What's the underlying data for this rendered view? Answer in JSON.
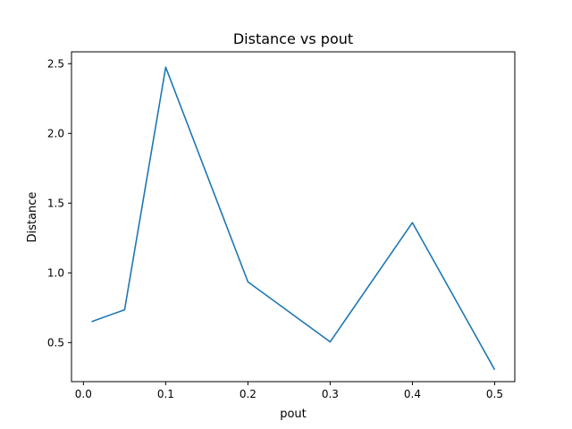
{
  "chart_data": {
    "type": "line",
    "title": "Distance vs pout",
    "xlabel": "pout",
    "ylabel": "Distance",
    "xlim": [
      -0.0145,
      0.5245
    ],
    "ylim": [
      0.22,
      2.585
    ],
    "xticks": [
      0.0,
      0.1,
      0.2,
      0.3,
      0.4,
      0.5
    ],
    "xtick_labels": [
      "0.0",
      "0.1",
      "0.2",
      "0.3",
      "0.4",
      "0.5"
    ],
    "yticks": [
      0.5,
      1.0,
      1.5,
      2.0,
      2.5
    ],
    "ytick_labels": [
      "0.5",
      "1.0",
      "1.5",
      "2.0",
      "2.5"
    ],
    "grid": false,
    "series": [
      {
        "color": "#1f77b4",
        "x": [
          0.01,
          0.05,
          0.1,
          0.2,
          0.3,
          0.4,
          0.5
        ],
        "y": [
          0.65,
          0.735,
          2.475,
          0.935,
          0.505,
          1.36,
          0.305
        ]
      }
    ]
  }
}
